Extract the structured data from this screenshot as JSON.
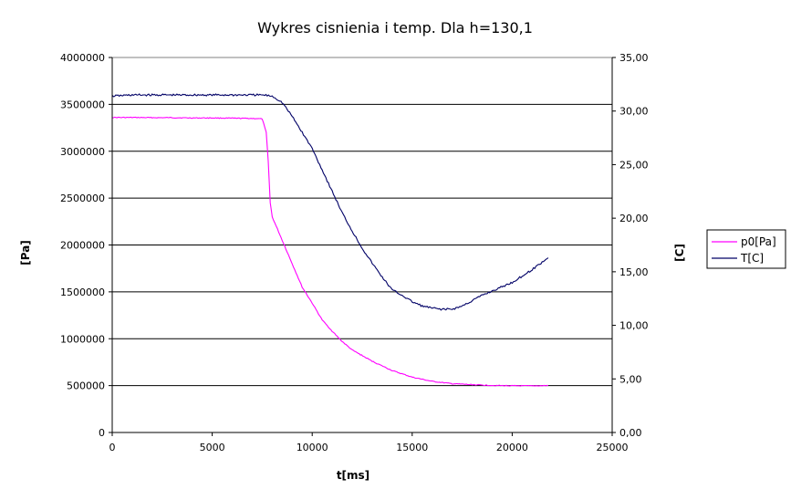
{
  "chart_data": {
    "type": "line",
    "title": "Wykres cisnienia i temp. Dla h=130,1",
    "xlabel": "t[ms]",
    "ylabel_left": "[Pa]",
    "ylabel_right": "[C]",
    "xlim": [
      0,
      25000
    ],
    "ylim_left": [
      0,
      4000000
    ],
    "ylim_right": [
      0,
      35
    ],
    "x_ticks": [
      "0",
      "5000",
      "10000",
      "15000",
      "20000",
      "25000"
    ],
    "y_left_ticks": [
      "0",
      "500000",
      "1000000",
      "1500000",
      "2000000",
      "2500000",
      "3000000",
      "3500000",
      "4000000"
    ],
    "y_right_ticks": [
      "0,00",
      "5,00",
      "10,00",
      "15,00",
      "20,00",
      "25,00",
      "30,00",
      "35,00"
    ],
    "grid": "horizontal",
    "legend_placement": "right",
    "series": [
      {
        "name": "p0[Pa]",
        "axis": "left",
        "color": "#ff00ff",
        "x": [
          0,
          1000,
          2000,
          3000,
          4000,
          5000,
          6000,
          7000,
          7500,
          7700,
          7800,
          7900,
          8000,
          8200,
          8500,
          9000,
          9500,
          10000,
          10500,
          11000,
          11500,
          12000,
          13000,
          14000,
          15000,
          16000,
          17000,
          18000,
          19000,
          20000,
          21000,
          21800
        ],
        "values": [
          3360000,
          3360000,
          3358000,
          3358000,
          3355000,
          3355000,
          3352000,
          3350000,
          3345000,
          3200000,
          2900000,
          2450000,
          2300000,
          2200000,
          2050000,
          1800000,
          1550000,
          1380000,
          1200000,
          1080000,
          970000,
          880000,
          760000,
          660000,
          590000,
          545000,
          520000,
          510000,
          502000,
          498000,
          497000,
          500000
        ]
      },
      {
        "name": "T[C]",
        "axis": "right",
        "color": "#000066",
        "x": [
          0,
          1000,
          2000,
          3000,
          4000,
          5000,
          6000,
          7000,
          7500,
          8000,
          8500,
          9000,
          9500,
          10000,
          10500,
          11000,
          11500,
          12000,
          12500,
          13000,
          13500,
          14000,
          14500,
          15000,
          15500,
          16000,
          16500,
          17000,
          17500,
          18000,
          18500,
          19000,
          19500,
          20000,
          20500,
          21000,
          21500,
          21800
        ],
        "values": [
          31.4,
          31.5,
          31.5,
          31.5,
          31.5,
          31.5,
          31.5,
          31.5,
          31.5,
          31.4,
          30.8,
          29.5,
          28.0,
          26.5,
          24.5,
          22.5,
          20.5,
          18.8,
          17.2,
          15.8,
          14.5,
          13.3,
          12.8,
          12.2,
          11.8,
          11.6,
          11.5,
          11.5,
          11.8,
          12.3,
          12.8,
          13.2,
          13.6,
          14.0,
          14.6,
          15.2,
          15.9,
          16.3
        ]
      }
    ]
  }
}
